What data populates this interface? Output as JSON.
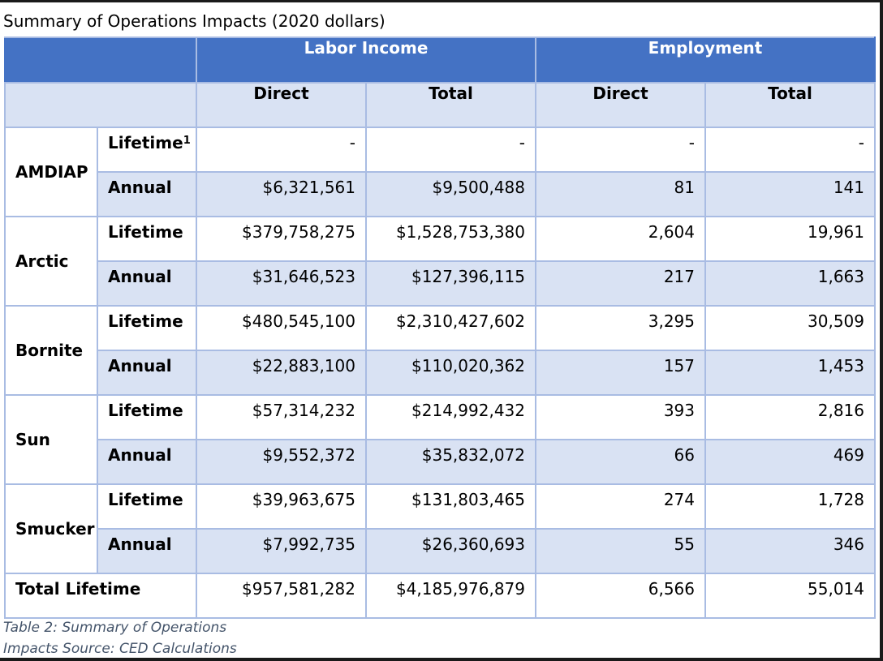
{
  "title": "Summary of Operations Impacts (2020 dollars)",
  "groups": {
    "labor": "Labor Income",
    "employment": "Employment"
  },
  "subheaders": {
    "labor_direct": "Direct",
    "labor_total": "Total",
    "emp_direct": "Direct",
    "emp_total": "Total"
  },
  "rows": [
    {
      "name": "AMDIAP",
      "lifetime": {
        "label": "Lifetime",
        "sup": "1",
        "labor_direct": "-",
        "labor_total": "-",
        "emp_direct": "-",
        "emp_total": "-"
      },
      "annual": {
        "label": "Annual",
        "labor_direct": "$6,321,561",
        "labor_total": "$9,500,488",
        "emp_direct": "81",
        "emp_total": "141"
      }
    },
    {
      "name": "Arctic",
      "lifetime": {
        "label": "Lifetime",
        "labor_direct": "$379,758,275",
        "labor_total": "$1,528,753,380",
        "emp_direct": "2,604",
        "emp_total": "19,961"
      },
      "annual": {
        "label": "Annual",
        "labor_direct": "$31,646,523",
        "labor_total": "$127,396,115",
        "emp_direct": "217",
        "emp_total": "1,663"
      }
    },
    {
      "name": "Bornite",
      "lifetime": {
        "label": "Lifetime",
        "labor_direct": "$480,545,100",
        "labor_total": "$2,310,427,602",
        "emp_direct": "3,295",
        "emp_total": "30,509"
      },
      "annual": {
        "label": "Annual",
        "labor_direct": "$22,883,100",
        "labor_total": "$110,020,362",
        "emp_direct": "157",
        "emp_total": "1,453"
      }
    },
    {
      "name": "Sun",
      "lifetime": {
        "label": "Lifetime",
        "labor_direct": "$57,314,232",
        "labor_total": "$214,992,432",
        "emp_direct": "393",
        "emp_total": "2,816"
      },
      "annual": {
        "label": "Annual",
        "labor_direct": "$9,552,372",
        "labor_total": "$35,832,072",
        "emp_direct": "66",
        "emp_total": "469"
      }
    },
    {
      "name": "Smucker",
      "lifetime": {
        "label": "Lifetime",
        "labor_direct": "$39,963,675",
        "labor_total": "$131,803,465",
        "emp_direct": "274",
        "emp_total": "1,728"
      },
      "annual": {
        "label": "Annual",
        "labor_direct": "$7,992,735",
        "labor_total": "$26,360,693",
        "emp_direct": "55",
        "emp_total": "346"
      }
    }
  ],
  "total": {
    "label": "Total Lifetime",
    "labor_direct": "$957,581,282",
    "labor_total": "$4,185,976,879",
    "emp_direct": "6,566",
    "emp_total": "55,014"
  },
  "caption": {
    "line1": "Table 2: Summary of Operations",
    "line2": "Impacts Source: CED Calculations"
  },
  "colors": {
    "header_blue": "#4472c4",
    "band_blue": "#d9e2f3",
    "grid": "#a9bce3",
    "caption": "#44546a"
  }
}
